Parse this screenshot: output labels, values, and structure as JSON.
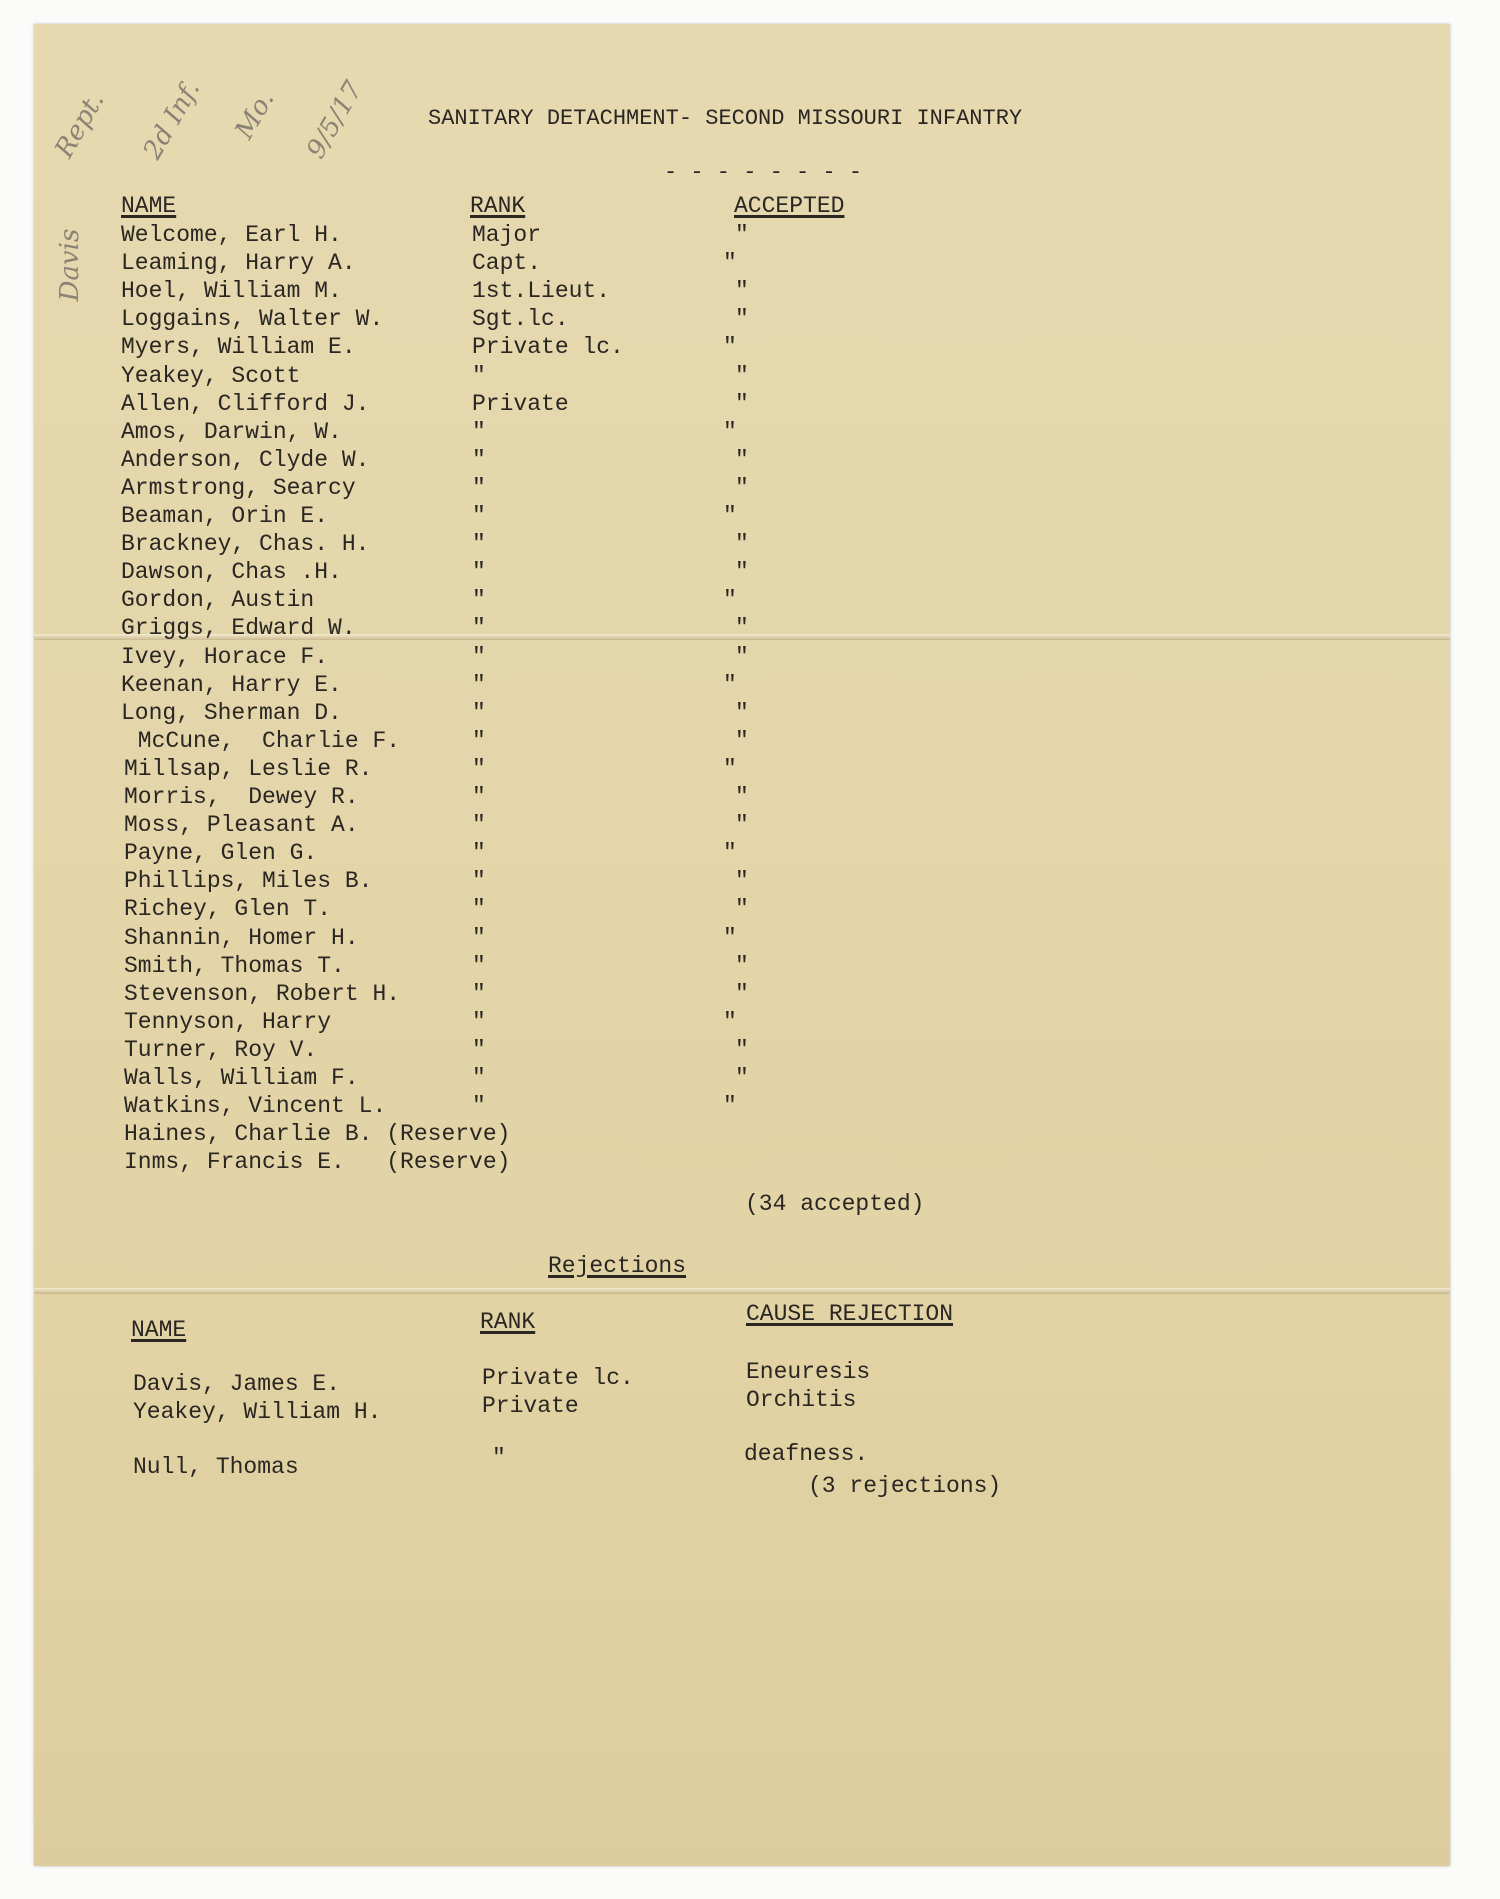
{
  "document": {
    "title": "SANITARY DETACHMENT- SECOND MISSOURI INFANTRY",
    "separator": "- - - - - - - -",
    "handwritten_note": [
      "Rept.",
      "2d Inf.",
      "Mo.",
      "9/5/17"
    ],
    "handwritten_margin": "Davis",
    "accepted": {
      "headers": {
        "name": "NAME",
        "rank": "RANK",
        "accepted": "ACCEPTED"
      },
      "rows": [
        {
          "name": "Welcome, Earl H.",
          "rank": "Major",
          "accepted": "\""
        },
        {
          "name": "Leaming, Harry A.",
          "rank": "Capt.",
          "accepted": "\""
        },
        {
          "name": "Hoel, William M.",
          "rank": "1st.Lieut.",
          "accepted": "\""
        },
        {
          "name": "Loggains, Walter W.",
          "rank": "Sgt.lc.",
          "accepted": "\""
        },
        {
          "name": "Myers, William E.",
          "rank": "Private lc.",
          "accepted": "\""
        },
        {
          "name": "Yeakey, Scott",
          "rank": "\"",
          "accepted": "\""
        },
        {
          "name": "Allen, Clifford J.",
          "rank": "Private",
          "accepted": "\""
        },
        {
          "name": "Amos, Darwin, W.",
          "rank": "\"",
          "accepted": "\""
        },
        {
          "name": "Anderson, Clyde W.",
          "rank": "\"",
          "accepted": "\""
        },
        {
          "name": "Armstrong, Searcy",
          "rank": "\"",
          "accepted": "\""
        },
        {
          "name": "Beaman, Orin E.",
          "rank": "\"",
          "accepted": "\""
        },
        {
          "name": "Brackney, Chas. H.",
          "rank": "\"",
          "accepted": "\""
        },
        {
          "name": "Dawson, Chas .H.",
          "rank": "\"",
          "accepted": "\""
        },
        {
          "name": "Gordon, Austin",
          "rank": "\"",
          "accepted": "\""
        },
        {
          "name": "Griggs, Edward W.",
          "rank": "\"",
          "accepted": "\""
        },
        {
          "name": "Ivey, Horace F.",
          "rank": "\"",
          "accepted": "\""
        },
        {
          "name": "Keenan, Harry E.",
          "rank": "\"",
          "accepted": "\""
        },
        {
          "name": "Long, Sherman D.",
          "rank": "\"",
          "accepted": "\""
        },
        {
          "name": " McCune,  Charlie F.",
          "rank": "\"",
          "accepted": "\""
        },
        {
          "name": "Millsap, Leslie R.",
          "rank": "\"",
          "accepted": "\""
        },
        {
          "name": "Morris,  Dewey R.",
          "rank": "\"",
          "accepted": "\""
        },
        {
          "name": "Moss, Pleasant A.",
          "rank": "\"",
          "accepted": "\""
        },
        {
          "name": "Payne, Glen G.",
          "rank": "\"",
          "accepted": "\""
        },
        {
          "name": "Phillips, Miles B.",
          "rank": "\"",
          "accepted": "\""
        },
        {
          "name": "Richey, Glen T.",
          "rank": "\"",
          "accepted": "\""
        },
        {
          "name": "Shannin, Homer H.",
          "rank": "\"",
          "accepted": "\""
        },
        {
          "name": "Smith, Thomas T.",
          "rank": "\"",
          "accepted": "\""
        },
        {
          "name": "Stevenson, Robert H.",
          "rank": "\"",
          "accepted": "\""
        },
        {
          "name": "Tennyson, Harry",
          "rank": "\"",
          "accepted": "\""
        },
        {
          "name": "Turner, Roy V.",
          "rank": "\"",
          "accepted": "\""
        },
        {
          "name": "Walls, William F.",
          "rank": "\"",
          "accepted": "\""
        },
        {
          "name": "Watkins, Vincent L.",
          "rank": "\"",
          "accepted": "\""
        },
        {
          "name": "Haines, Charlie B. (Reserve)",
          "rank": "",
          "accepted": ""
        },
        {
          "name": "Inms, Francis E.   (Reserve)",
          "rank": "",
          "accepted": ""
        }
      ],
      "total": "(34 accepted)"
    },
    "rejections": {
      "title": "Rejections",
      "headers": {
        "name": "NAME",
        "rank": "RANK",
        "cause": "CAUSE REJECTION"
      },
      "rows": [
        {
          "name": "Davis, James E.",
          "rank": "Private lc.",
          "cause": "Eneuresis"
        },
        {
          "name": "Yeakey, William H.",
          "rank": "Private",
          "cause": "Orchitis"
        },
        {
          "name": "Null, Thomas",
          "rank": "\"",
          "cause": "deafness."
        }
      ],
      "total": "(3 rejections)"
    }
  }
}
